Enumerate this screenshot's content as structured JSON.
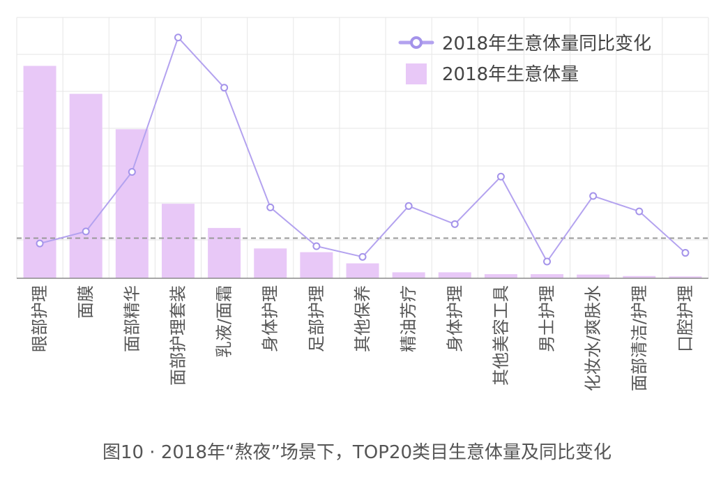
{
  "chart_data": {
    "type": "bar",
    "categories": [
      "眼部护理",
      "面膜",
      "面部精华",
      "面部护理套装",
      "乳液/面霜",
      "身体护理",
      "足部护理",
      "其他保养",
      "精油芳疗",
      "身体护理",
      "其他美容工具",
      "男士护理",
      "化妆水/爽肤水",
      "面部清洁/护理",
      "口腔护理"
    ],
    "series": [
      {
        "name": "2018年生意体量",
        "type": "bar",
        "values": [
          57,
          49.5,
          40,
          20,
          13.5,
          8,
          7,
          4,
          1.6,
          1.6,
          1.1,
          1.1,
          1.0,
          0.6,
          0.5
        ]
      },
      {
        "name": "2018年生意体量同比变化",
        "type": "line",
        "values": [
          52,
          70,
          159,
          360,
          285,
          106,
          48,
          32,
          108,
          81,
          152,
          25,
          123,
          100,
          38
        ]
      }
    ],
    "bar_ylim": [
      0,
      70
    ],
    "line_ylim": [
      0,
      390
    ],
    "reference_line": 60,
    "grid": true,
    "legend_position": "top-right",
    "colors": {
      "bar": "#e8c8f7",
      "line": "#b3a2ef",
      "marker_stroke": "#a493ea",
      "reference": "#999999",
      "grid": "#e6e6e6"
    }
  },
  "caption": "图10 · 2018年“熬夜”场景下，TOP20类目生意体量及同比变化"
}
